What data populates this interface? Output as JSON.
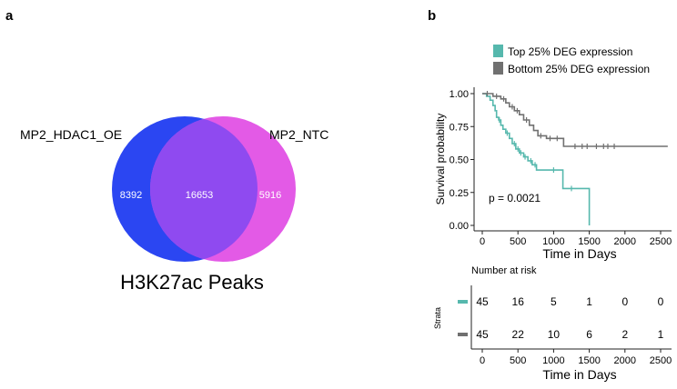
{
  "panel_labels": {
    "a": "a",
    "b": "b"
  },
  "chart_data": [
    {
      "type": "venn",
      "title": "H3K27ac Peaks",
      "sets": [
        {
          "name": "MP2_HDAC1_OE",
          "color": "#2b46f2"
        },
        {
          "name": "MP2_NTC",
          "color": "#e35ae6"
        }
      ],
      "regions": {
        "left_only": "8392",
        "intersection": "16653",
        "right_only": "5916"
      },
      "overlap_color": "#8f4af0"
    },
    {
      "type": "line",
      "subtype": "kaplan-meier",
      "legend": [
        {
          "name": "Top 25% DEG expression",
          "color": "#56b8ad"
        },
        {
          "name": "Bottom 25% DEG expression",
          "color": "#707070"
        }
      ],
      "ylabel": "Survival probability",
      "xlabel": "Time in Days",
      "xlim": [
        0,
        2600
      ],
      "ylim": [
        0,
        1
      ],
      "xticks": [
        "0",
        "500",
        "1000",
        "1500",
        "2000",
        "2500"
      ],
      "yticks": [
        "0.00",
        "0.25",
        "0.50",
        "0.75",
        "1.00"
      ],
      "pvalue_text": "p = 0.0021",
      "series": [
        {
          "name": "Top 25% DEG expression",
          "color": "#56b8ad",
          "steps": [
            [
              0,
              1.0
            ],
            [
              60,
              0.98
            ],
            [
              110,
              0.95
            ],
            [
              150,
              0.91
            ],
            [
              180,
              0.87
            ],
            [
              200,
              0.82
            ],
            [
              230,
              0.8
            ],
            [
              260,
              0.76
            ],
            [
              290,
              0.73
            ],
            [
              330,
              0.7
            ],
            [
              380,
              0.66
            ],
            [
              420,
              0.62
            ],
            [
              470,
              0.58
            ],
            [
              520,
              0.55
            ],
            [
              580,
              0.52
            ],
            [
              640,
              0.49
            ],
            [
              700,
              0.46
            ],
            [
              760,
              0.42
            ],
            [
              1130,
              0.28
            ],
            [
              1500,
              0.0
            ]
          ],
          "end": 1500,
          "censor": [
            [
              240,
              0.8
            ],
            [
              350,
              0.7
            ],
            [
              450,
              0.62
            ],
            [
              500,
              0.58
            ],
            [
              540,
              0.55
            ],
            [
              600,
              0.52
            ],
            [
              680,
              0.49
            ],
            [
              740,
              0.46
            ],
            [
              1000,
              0.42
            ],
            [
              1250,
              0.28
            ]
          ]
        },
        {
          "name": "Bottom 25% DEG expression",
          "color": "#707070",
          "steps": [
            [
              0,
              1.0
            ],
            [
              150,
              0.98
            ],
            [
              260,
              0.96
            ],
            [
              330,
              0.93
            ],
            [
              380,
              0.9
            ],
            [
              450,
              0.87
            ],
            [
              520,
              0.84
            ],
            [
              580,
              0.8
            ],
            [
              660,
              0.76
            ],
            [
              720,
              0.72
            ],
            [
              780,
              0.68
            ],
            [
              900,
              0.66
            ],
            [
              1140,
              0.6
            ]
          ],
          "end": 2600,
          "censor": [
            [
              70,
              1.0
            ],
            [
              200,
              0.98
            ],
            [
              300,
              0.96
            ],
            [
              420,
              0.9
            ],
            [
              490,
              0.87
            ],
            [
              620,
              0.8
            ],
            [
              820,
              0.68
            ],
            [
              950,
              0.66
            ],
            [
              1050,
              0.66
            ],
            [
              1300,
              0.6
            ],
            [
              1400,
              0.6
            ],
            [
              1470,
              0.6
            ],
            [
              1600,
              0.6
            ],
            [
              1700,
              0.6
            ],
            [
              1760,
              0.6
            ],
            [
              1850,
              0.6
            ]
          ]
        }
      ]
    },
    {
      "type": "table",
      "title": "Number at risk",
      "ylabel": "Strata",
      "xlabel": "Time in Days",
      "xticks": [
        "0",
        "500",
        "1000",
        "1500",
        "2000",
        "2500"
      ],
      "times": [
        0,
        500,
        1000,
        1500,
        2000,
        2500
      ],
      "rows": [
        {
          "color": "#56b8ad",
          "values": [
            "45",
            "16",
            "5",
            "1",
            "0",
            "0"
          ]
        },
        {
          "color": "#707070",
          "values": [
            "45",
            "22",
            "10",
            "6",
            "2",
            "1"
          ]
        }
      ]
    }
  ]
}
